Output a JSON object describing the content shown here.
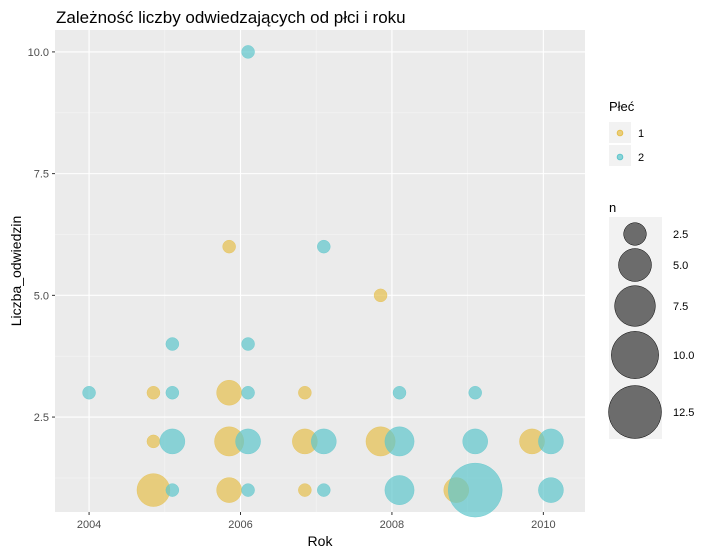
{
  "chart_data": {
    "type": "scatter",
    "title": "Zależność liczby odwiedzających od płci i roku",
    "xlabel": "Rok",
    "ylabel": "Liczba_odwiedzin",
    "xlim": [
      2003.55,
      2010.55
    ],
    "ylim": [
      0.55,
      10.45
    ],
    "x_ticks": [
      2004,
      2006,
      2008,
      2010
    ],
    "y_ticks": [
      2.5,
      5.0,
      7.5,
      10.0
    ],
    "x_tick_labels": [
      "2004",
      "2006",
      "2008",
      "2010"
    ],
    "y_tick_labels": [
      "2.5",
      "5.0",
      "7.5",
      "10.0"
    ],
    "grid": true,
    "colors": {
      "1": "#e6bf4d",
      "2": "#5ec6cc"
    },
    "size_range_n": [
      1,
      13
    ],
    "series": [
      {
        "name": "1",
        "points": [
          {
            "x": 2004.85,
            "y": 1,
            "n": 5
          },
          {
            "x": 2004.85,
            "y": 2,
            "n": 1
          },
          {
            "x": 2004.85,
            "y": 3,
            "n": 1
          },
          {
            "x": 2005.85,
            "y": 1,
            "n": 3
          },
          {
            "x": 2005.85,
            "y": 2,
            "n": 4
          },
          {
            "x": 2005.85,
            "y": 3,
            "n": 3
          },
          {
            "x": 2005.85,
            "y": 6,
            "n": 1
          },
          {
            "x": 2006.85,
            "y": 1,
            "n": 1
          },
          {
            "x": 2006.85,
            "y": 2,
            "n": 3
          },
          {
            "x": 2006.85,
            "y": 3,
            "n": 1
          },
          {
            "x": 2007.85,
            "y": 2,
            "n": 4
          },
          {
            "x": 2007.85,
            "y": 5,
            "n": 1
          },
          {
            "x": 2008.85,
            "y": 1,
            "n": 3
          },
          {
            "x": 2009.85,
            "y": 2,
            "n": 3
          }
        ]
      },
      {
        "name": "2",
        "points": [
          {
            "x": 2004.0,
            "y": 3,
            "n": 1
          },
          {
            "x": 2005.1,
            "y": 1,
            "n": 1
          },
          {
            "x": 2005.1,
            "y": 2,
            "n": 3
          },
          {
            "x": 2005.1,
            "y": 3,
            "n": 1
          },
          {
            "x": 2005.1,
            "y": 4,
            "n": 1
          },
          {
            "x": 2006.1,
            "y": 1,
            "n": 1
          },
          {
            "x": 2006.1,
            "y": 2,
            "n": 3
          },
          {
            "x": 2006.1,
            "y": 3,
            "n": 1
          },
          {
            "x": 2006.1,
            "y": 4,
            "n": 1
          },
          {
            "x": 2006.1,
            "y": 10,
            "n": 1
          },
          {
            "x": 2007.1,
            "y": 1,
            "n": 1
          },
          {
            "x": 2007.1,
            "y": 2,
            "n": 3
          },
          {
            "x": 2007.1,
            "y": 6,
            "n": 1
          },
          {
            "x": 2008.1,
            "y": 1,
            "n": 4
          },
          {
            "x": 2008.1,
            "y": 2,
            "n": 4
          },
          {
            "x": 2008.1,
            "y": 3,
            "n": 1
          },
          {
            "x": 2009.1,
            "y": 1,
            "n": 13
          },
          {
            "x": 2009.1,
            "y": 2,
            "n": 3
          },
          {
            "x": 2009.1,
            "y": 3,
            "n": 1
          },
          {
            "x": 2010.1,
            "y": 1,
            "n": 3
          },
          {
            "x": 2010.1,
            "y": 2,
            "n": 3
          }
        ]
      }
    ],
    "legend_color": {
      "title": "Płeć",
      "entries": [
        "1",
        "2"
      ]
    },
    "legend_size": {
      "title": "n",
      "values": [
        2.5,
        5.0,
        7.5,
        10.0,
        12.5
      ],
      "labels": [
        "2.5",
        "5.0",
        "7.5",
        "10.0",
        "12.5"
      ]
    },
    "legend_placement": "right"
  }
}
